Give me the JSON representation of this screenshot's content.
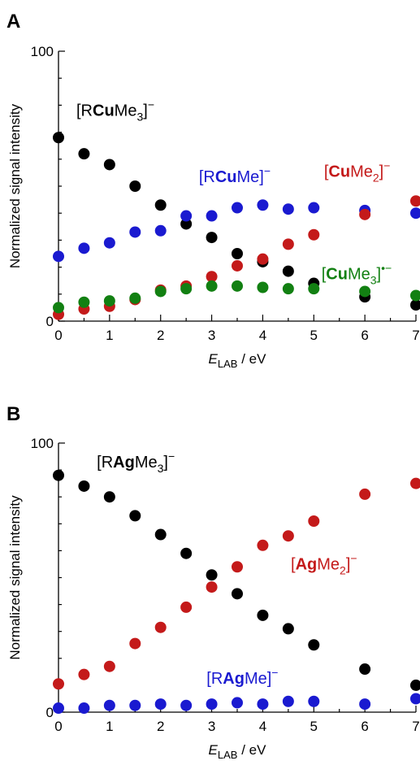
{
  "chart_data": [
    {
      "type": "scatter",
      "panel_label": "A",
      "title": "",
      "xlabel": {
        "main": "E",
        "sub": "LAB",
        "unit": " / eV"
      },
      "ylabel": "Normalized signal intensity",
      "xlim": [
        0,
        7
      ],
      "ylim": [
        0,
        100
      ],
      "x_ticks": [
        0,
        1,
        2,
        3,
        4,
        5,
        6,
        7
      ],
      "y_ticks": [
        0,
        100
      ],
      "grid": false,
      "legend": "none",
      "x": [
        0,
        0.5,
        1,
        1.5,
        2,
        2.5,
        3,
        3.5,
        4,
        4.5,
        5,
        6,
        7
      ],
      "series": [
        {
          "name": "[RCuMe3]−",
          "label_parts": [
            {
              "t": "[R",
              "style": "normal"
            },
            {
              "t": "Cu",
              "style": "bold"
            },
            {
              "t": "Me",
              "style": "normal"
            },
            {
              "t": "3",
              "style": "sub"
            },
            {
              "t": "]",
              "style": "normal"
            },
            {
              "t": "−",
              "style": "sup"
            }
          ],
          "label_anchor": [
            0.35,
            76
          ],
          "color": "#000000",
          "values": [
            68,
            62,
            58,
            50,
            43,
            36,
            31,
            25,
            22,
            18.5,
            14,
            9,
            6
          ]
        },
        {
          "name": "[RCuMe]−",
          "label_parts": [
            {
              "t": "[R",
              "style": "normal"
            },
            {
              "t": "Cu",
              "style": "bold"
            },
            {
              "t": "Me]",
              "style": "normal"
            },
            {
              "t": "−",
              "style": "sup"
            }
          ],
          "label_anchor": [
            2.75,
            51.5
          ],
          "color": "#1a1ad0",
          "values": [
            24,
            27,
            29,
            33,
            33.5,
            39,
            39,
            42,
            43,
            41.5,
            42,
            41,
            40
          ]
        },
        {
          "name": "[CuMe2]−",
          "label_parts": [
            {
              "t": "[",
              "style": "normal"
            },
            {
              "t": "Cu",
              "style": "bold"
            },
            {
              "t": "Me",
              "style": "normal"
            },
            {
              "t": "2",
              "style": "sub"
            },
            {
              "t": "]",
              "style": "normal"
            },
            {
              "t": "−",
              "style": "sup"
            }
          ],
          "label_anchor": [
            5.2,
            53.5
          ],
          "color": "#c41a1a",
          "values": [
            2.5,
            4.5,
            5.5,
            8,
            11.5,
            13,
            16.5,
            20.5,
            23,
            28.5,
            32,
            39.5,
            44.5
          ]
        },
        {
          "name": "[CuMe3]•−",
          "label_parts": [
            {
              "t": "[",
              "style": "normal"
            },
            {
              "t": "Cu",
              "style": "bold"
            },
            {
              "t": "Me",
              "style": "normal"
            },
            {
              "t": "3",
              "style": "sub"
            },
            {
              "t": "]",
              "style": "normal"
            },
            {
              "t": "•−",
              "style": "sup"
            }
          ],
          "label_anchor": [
            5.15,
            15.5
          ],
          "color": "#128012",
          "values": [
            5,
            7,
            7.5,
            8.5,
            11,
            12,
            13,
            13,
            12.5,
            12,
            12,
            11,
            9.5
          ]
        }
      ]
    },
    {
      "type": "scatter",
      "panel_label": "B",
      "title": "",
      "xlabel": {
        "main": "E",
        "sub": "LAB",
        "unit": " / eV"
      },
      "ylabel": "Normalized signal intensity",
      "xlim": [
        0,
        7
      ],
      "ylim": [
        0,
        100
      ],
      "x_ticks": [
        0,
        1,
        2,
        3,
        4,
        5,
        6,
        7
      ],
      "y_ticks": [
        0,
        100
      ],
      "grid": false,
      "legend": "none",
      "x": [
        0,
        0.5,
        1,
        1.5,
        2,
        2.5,
        3,
        3.5,
        4,
        4.5,
        5,
        6,
        7
      ],
      "series": [
        {
          "name": "[RAgMe3]−",
          "label_parts": [
            {
              "t": "[R",
              "style": "normal"
            },
            {
              "t": "Ag",
              "style": "bold"
            },
            {
              "t": "Me",
              "style": "normal"
            },
            {
              "t": "3",
              "style": "sub"
            },
            {
              "t": "]",
              "style": "normal"
            },
            {
              "t": "−",
              "style": "sup"
            }
          ],
          "label_anchor": [
            0.75,
            91
          ],
          "color": "#000000",
          "values": [
            88,
            84,
            80,
            73,
            66,
            59,
            51,
            44,
            36,
            31,
            25,
            16,
            10
          ]
        },
        {
          "name": "[AgMe2]−",
          "label_parts": [
            {
              "t": "[",
              "style": "normal"
            },
            {
              "t": "Ag",
              "style": "bold"
            },
            {
              "t": "Me",
              "style": "normal"
            },
            {
              "t": "2",
              "style": "sub"
            },
            {
              "t": "]",
              "style": "normal"
            },
            {
              "t": "−",
              "style": "sup"
            }
          ],
          "label_anchor": [
            4.55,
            53
          ],
          "color": "#c41a1a",
          "values": [
            10.5,
            14,
            17,
            25.5,
            31.5,
            39,
            46.5,
            54,
            62,
            65.5,
            71,
            81,
            85
          ]
        },
        {
          "name": "[RAgMe]−",
          "label_parts": [
            {
              "t": "[R",
              "style": "normal"
            },
            {
              "t": "Ag",
              "style": "bold"
            },
            {
              "t": "Me]",
              "style": "normal"
            },
            {
              "t": "−",
              "style": "sup"
            }
          ],
          "label_anchor": [
            2.9,
            10.5
          ],
          "color": "#1a1ad0",
          "values": [
            1.5,
            1.5,
            2.5,
            2.5,
            3,
            2.5,
            3,
            3.5,
            3,
            4,
            4,
            3,
            5
          ]
        }
      ]
    }
  ]
}
